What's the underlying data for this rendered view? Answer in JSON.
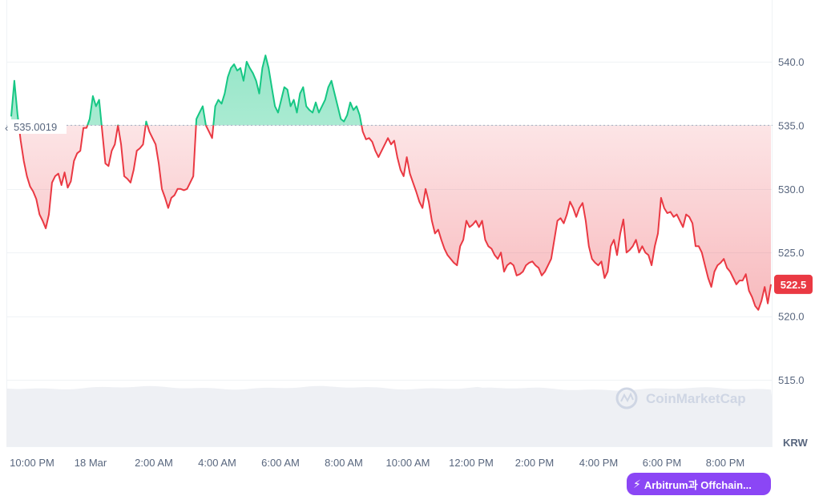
{
  "chart_data": {
    "type": "line",
    "reference_value": 535.0019,
    "reference_label": "535.0019",
    "current_value": 522.5,
    "current_label": "522.5",
    "currency": "KRW",
    "watermark": "CoinMarketCap",
    "ylim": [
      510.0,
      545.0
    ],
    "y_ticks": [
      "540.0",
      "535.0",
      "530.0",
      "525.0",
      "520.0",
      "515.0"
    ],
    "y_tick_values": [
      540,
      535,
      530,
      525,
      520,
      515
    ],
    "x_tick_labels": [
      "10:00 PM",
      "18 Mar",
      "2:00 AM",
      "4:00 AM",
      "6:00 AM",
      "8:00 AM",
      "10:00 AM",
      "12:00 PM",
      "2:00 PM",
      "4:00 PM",
      "6:00 PM",
      "8:00 PM"
    ],
    "colors": {
      "up": "#16c784",
      "down": "#ea3943",
      "reference": "#a6b0c3",
      "volume": "#eef0f4"
    },
    "grid": true,
    "series": [
      {
        "values": [
          535.7,
          538.5,
          535.9,
          533.8,
          532.2,
          531.0,
          530.2,
          529.8,
          529.2,
          528.0,
          527.5,
          526.9,
          528.0,
          530.5,
          531.0,
          531.2,
          530.3,
          531.3,
          530.1,
          530.6,
          532.2,
          532.8,
          533.0,
          534.8,
          534.8,
          535.5,
          537.3,
          536.5,
          537.0,
          534.5,
          532.0,
          531.8,
          533.0,
          533.5,
          535.0,
          533.5,
          531.0,
          530.8,
          530.5,
          531.5,
          533.0,
          533.2,
          533.5,
          535.3,
          534.5,
          534.0,
          533.5,
          532.0,
          530.0,
          529.3,
          528.5,
          529.3,
          529.5,
          530.0,
          530.0,
          529.9,
          530.0,
          530.5,
          531.0,
          535.5,
          536.0,
          536.5,
          535.0,
          534.5,
          534.0,
          536.5,
          537.0,
          536.7,
          537.5,
          538.8,
          539.5,
          539.8,
          539.3,
          539.5,
          538.5,
          540.0,
          539.5,
          539.1,
          538.5,
          537.5,
          539.5,
          540.5,
          539.5,
          538.0,
          536.5,
          536.0,
          537.0,
          538.0,
          537.8,
          536.5,
          537.0,
          536.0,
          537.5,
          538.0,
          536.5,
          536.2,
          536.0,
          536.8,
          536.0,
          536.5,
          537.0,
          538.0,
          538.5,
          537.5,
          536.5,
          535.5,
          535.3,
          535.8,
          536.8,
          536.2,
          536.5,
          535.8,
          534.5,
          533.9,
          534.0,
          533.7,
          533.0,
          532.5,
          533.0,
          533.5,
          534.0,
          533.5,
          533.8,
          532.5,
          531.5,
          531.0,
          532.5,
          531.2,
          530.5,
          529.8,
          529.0,
          528.5,
          530.0,
          529.0,
          527.5,
          526.5,
          526.8,
          526.0,
          525.3,
          524.8,
          524.5,
          524.2,
          524.0,
          525.5,
          526.0,
          527.5,
          527.0,
          527.2,
          527.5,
          527.0,
          527.5,
          526.0,
          525.5,
          525.3,
          524.8,
          524.5,
          525.0,
          523.5,
          524.0,
          524.2,
          524.0,
          523.2,
          523.3,
          523.5,
          524.0,
          524.2,
          524.3,
          524.0,
          523.8,
          523.2,
          523.5,
          524.0,
          524.5,
          526.0,
          527.5,
          527.7,
          527.3,
          528.0,
          529.0,
          528.5,
          527.8,
          528.5,
          528.9,
          527.5,
          525.5,
          524.5,
          524.2,
          524.0,
          524.3,
          523.0,
          523.5,
          525.5,
          526.0,
          524.8,
          526.5,
          527.6,
          525.0,
          525.2,
          525.5,
          526.0,
          525.0,
          525.5,
          525.0,
          524.8,
          524.0,
          525.5,
          526.5,
          529.3,
          528.5,
          528.1,
          528.2,
          527.8,
          528.0,
          527.5,
          527.0,
          528.0,
          527.8,
          527.3,
          525.5,
          525.5,
          525.0,
          524.0,
          523.0,
          522.3,
          523.5,
          524.0,
          524.2,
          524.5,
          523.8,
          523.5,
          523.0,
          522.5,
          522.8,
          522.8,
          523.3,
          522.0,
          521.5,
          520.8,
          520.5,
          521.2,
          522.3,
          521.0,
          522.5
        ]
      }
    ]
  },
  "event_pill": {
    "label": "Arbitrum과 Offchain..."
  }
}
